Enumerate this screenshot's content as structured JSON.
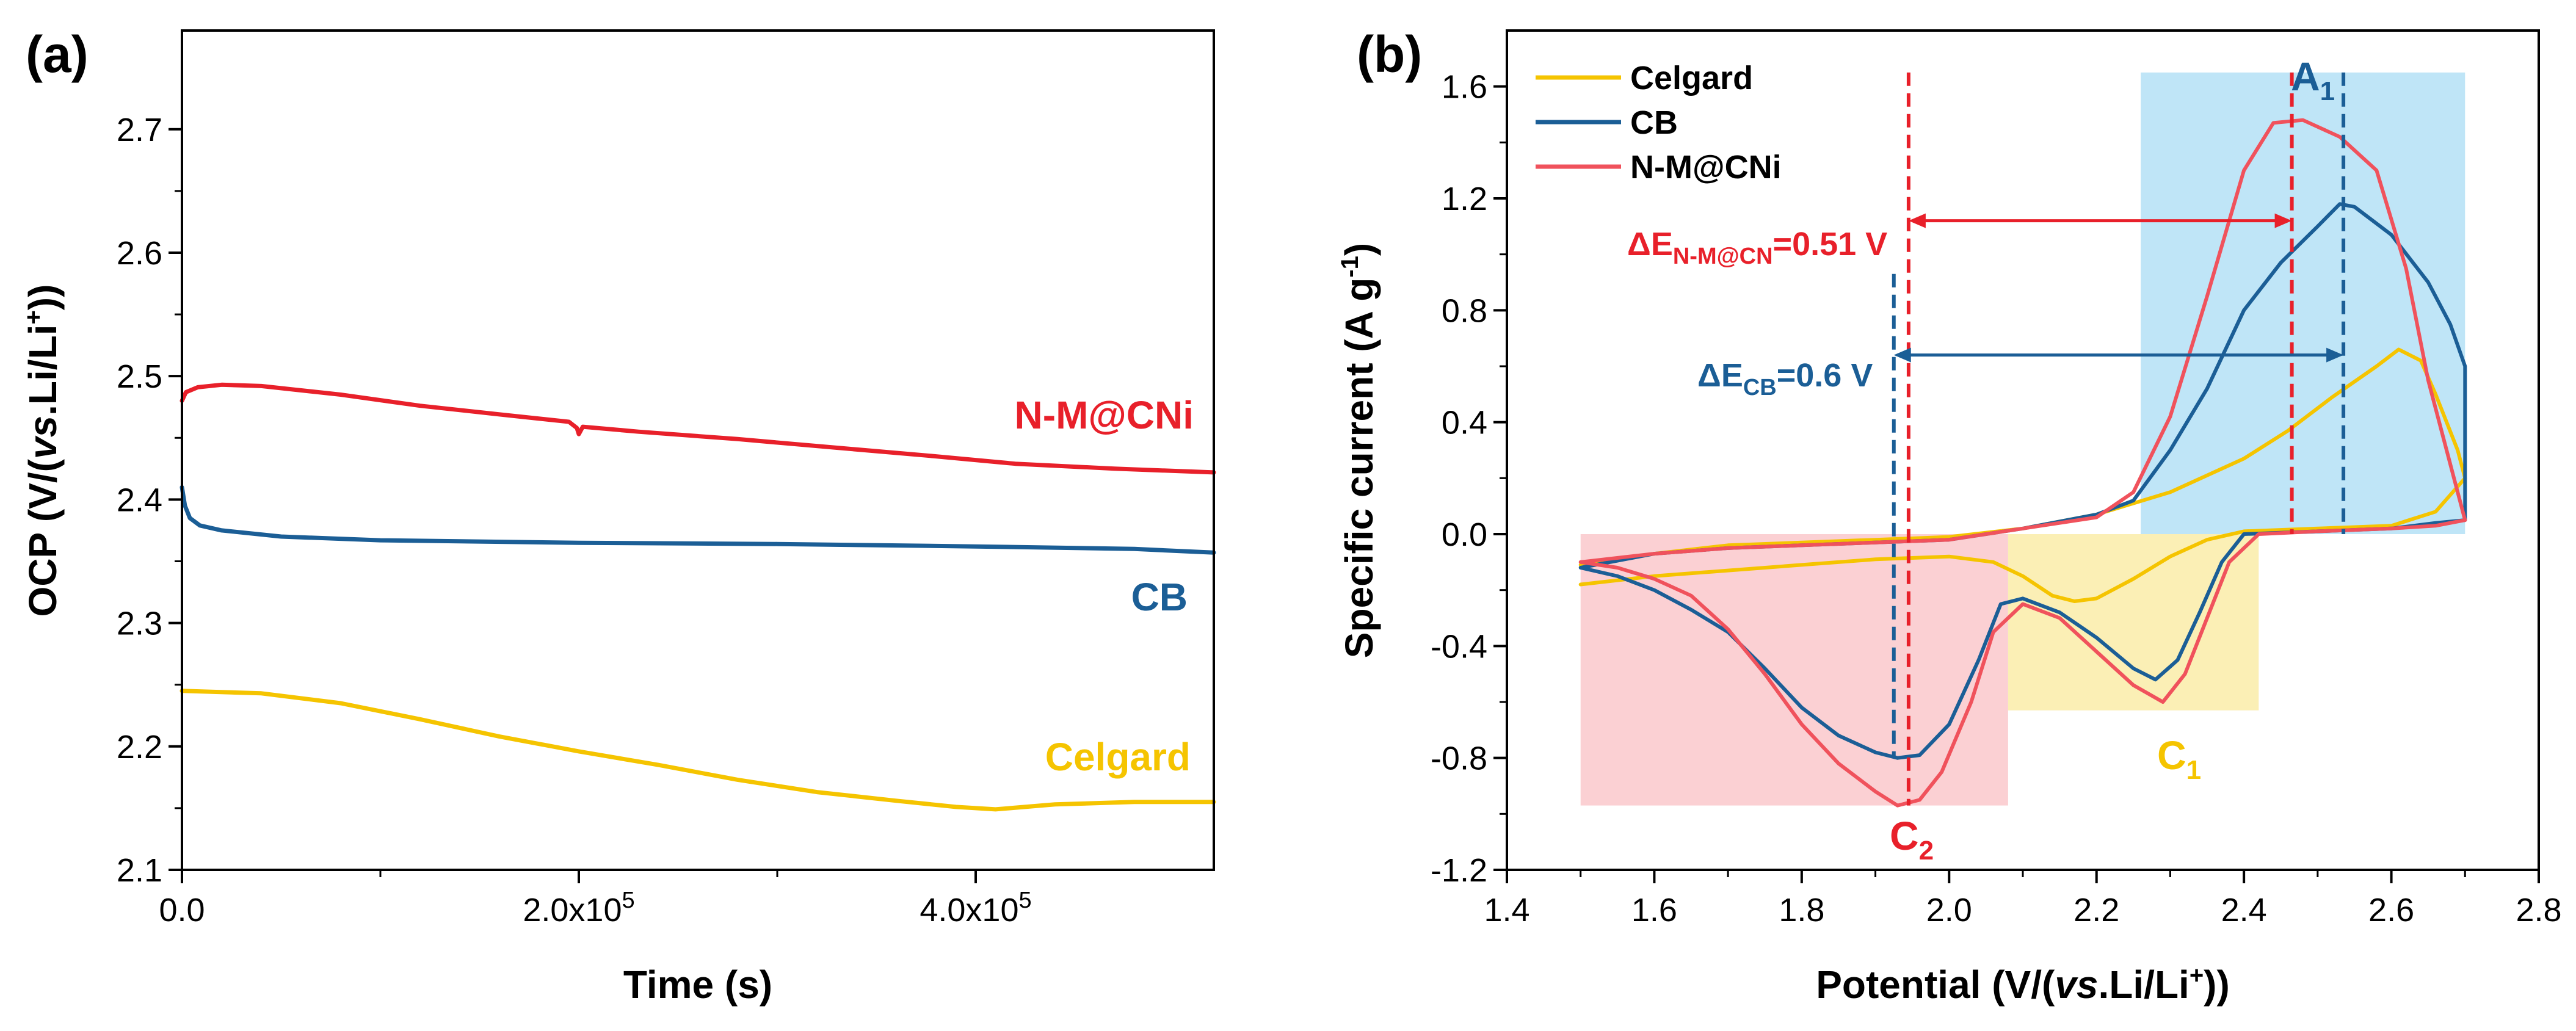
{
  "colors": {
    "celgard": "#F5C400",
    "cb": "#1B5E96",
    "nmcni": "#E8202A",
    "nmcni_cv": "#F0525C",
    "region_oxidation": "#BFE5F7",
    "region_c1": "#FBEFB5",
    "region_c2": "#FBD0D3"
  },
  "panel_a": {
    "label": "(a)",
    "series_labels": {
      "nmcni": "N-M@CNi",
      "cb": "CB",
      "celgard": "Celgard"
    }
  },
  "panel_b": {
    "label": "(b)",
    "legend": [
      "Celgard",
      "CB",
      "N-M@CNi"
    ],
    "peaks": {
      "A": {
        "letter": "A",
        "sub": "1"
      },
      "C1": {
        "letter": "C",
        "sub": "1"
      },
      "C2": {
        "letter": "C",
        "sub": "2"
      }
    },
    "annotation_nmcni": {
      "main": "ΔE",
      "sub": "N-M@CN",
      "value": "=0.51 V"
    },
    "annotation_cb": {
      "main": "ΔE",
      "sub": "CB",
      "value": "=0.6 V"
    }
  },
  "chart_data": [
    {
      "type": "line",
      "title": "(a)",
      "xlabel": {
        "main": "Time (s)"
      },
      "ylabel": {
        "pre": "OCP (V/(",
        "ital": "vs",
        "mid": ".Li/Li",
        "sup": "+",
        "post": "))"
      },
      "xlim": [
        0,
        520000
      ],
      "ylim": [
        2.1,
        2.78
      ],
      "xticks": [
        {
          "value": 0,
          "label": "0.0"
        },
        {
          "value": 200000,
          "label": "2.0x10",
          "sup": "5"
        },
        {
          "value": 400000,
          "label": "4.0x10",
          "sup": "5"
        }
      ],
      "yticks": [
        {
          "value": 2.1,
          "label": "2.1"
        },
        {
          "value": 2.2,
          "label": "2.2"
        },
        {
          "value": 2.3,
          "label": "2.3"
        },
        {
          "value": 2.4,
          "label": "2.4"
        },
        {
          "value": 2.5,
          "label": "2.5"
        },
        {
          "value": 2.6,
          "label": "2.6"
        },
        {
          "value": 2.7,
          "label": "2.7"
        }
      ],
      "series": [
        {
          "name": "N-M@CNi",
          "color": "#E8202A",
          "points": [
            [
              0,
              2.48
            ],
            [
              2000,
              2.487
            ],
            [
              8000,
              2.491
            ],
            [
              20000,
              2.493
            ],
            [
              40000,
              2.492
            ],
            [
              80000,
              2.485
            ],
            [
              120000,
              2.476
            ],
            [
              160000,
              2.469
            ],
            [
              195000,
              2.463
            ],
            [
              199000,
              2.458
            ],
            [
              200000,
              2.453
            ],
            [
              202000,
              2.459
            ],
            [
              230000,
              2.455
            ],
            [
              280000,
              2.449
            ],
            [
              330000,
              2.442
            ],
            [
              380000,
              2.435
            ],
            [
              420000,
              2.429
            ],
            [
              470000,
              2.425
            ],
            [
              520000,
              2.422
            ]
          ]
        },
        {
          "name": "CB",
          "color": "#1B5E96",
          "points": [
            [
              0,
              2.41
            ],
            [
              1500,
              2.395
            ],
            [
              4000,
              2.385
            ],
            [
              9000,
              2.379
            ],
            [
              20000,
              2.375
            ],
            [
              50000,
              2.37
            ],
            [
              100000,
              2.367
            ],
            [
              200000,
              2.365
            ],
            [
              300000,
              2.364
            ],
            [
              400000,
              2.362
            ],
            [
              480000,
              2.36
            ],
            [
              520000,
              2.357
            ]
          ]
        },
        {
          "name": "Celgard",
          "color": "#F5C400",
          "points": [
            [
              0,
              2.245
            ],
            [
              40000,
              2.243
            ],
            [
              80000,
              2.235
            ],
            [
              120000,
              2.222
            ],
            [
              160000,
              2.208
            ],
            [
              200000,
              2.196
            ],
            [
              240000,
              2.185
            ],
            [
              280000,
              2.173
            ],
            [
              320000,
              2.163
            ],
            [
              360000,
              2.156
            ],
            [
              390000,
              2.151
            ],
            [
              410000,
              2.149
            ],
            [
              440000,
              2.153
            ],
            [
              480000,
              2.155
            ],
            [
              520000,
              2.155
            ]
          ]
        }
      ]
    },
    {
      "type": "line",
      "title": "(b)",
      "xlabel": {
        "pre": "Potential (V/(",
        "ital": "vs",
        "mid": ".Li/Li",
        "sup": "+",
        "post": "))"
      },
      "ylabel": {
        "pre": "Specific current (A g",
        "sup": "-1",
        "post": ")"
      },
      "xlim": [
        1.4,
        2.8
      ],
      "ylim": [
        -1.2,
        1.8
      ],
      "xticks": [
        {
          "value": 1.4,
          "label": "1.4"
        },
        {
          "value": 1.6,
          "label": "1.6"
        },
        {
          "value": 1.8,
          "label": "1.8"
        },
        {
          "value": 2.0,
          "label": "2.0"
        },
        {
          "value": 2.2,
          "label": "2.2"
        },
        {
          "value": 2.4,
          "label": "2.4"
        },
        {
          "value": 2.6,
          "label": "2.6"
        },
        {
          "value": 2.8,
          "label": "2.8"
        }
      ],
      "yticks": [
        {
          "value": -1.2,
          "label": "-1.2"
        },
        {
          "value": -0.8,
          "label": "-0.8"
        },
        {
          "value": -0.4,
          "label": "-0.4"
        },
        {
          "value": 0.0,
          "label": "0.0"
        },
        {
          "value": 0.4,
          "label": "0.4"
        },
        {
          "value": 0.8,
          "label": "0.8"
        },
        {
          "value": 1.2,
          "label": "1.2"
        },
        {
          "value": 1.6,
          "label": "1.6"
        }
      ],
      "regions": [
        {
          "name": "oxidation-region",
          "x": [
            2.26,
            2.7
          ],
          "y": [
            0.0,
            1.65
          ],
          "color": "#BFE5F7"
        },
        {
          "name": "c1-region",
          "x": [
            2.08,
            2.42
          ],
          "y": [
            -0.63,
            0.0
          ],
          "color": "#FBEFB5"
        },
        {
          "name": "c2-region",
          "x": [
            1.5,
            2.08
          ],
          "y": [
            -0.97,
            0.0
          ],
          "color": "#FBD0D3"
        }
      ],
      "vlines": [
        {
          "name": "nmcni-reduction-peak",
          "x": 1.945,
          "y": [
            -0.97,
            1.65
          ],
          "color": "#E8202A"
        },
        {
          "name": "nmcni-oxidation-peak",
          "x": 2.465,
          "y": [
            0.0,
            1.65
          ],
          "color": "#E8202A"
        },
        {
          "name": "cb-reduction-peak",
          "x": 1.925,
          "y": [
            -0.8,
            0.93
          ],
          "color": "#1B5E96"
        },
        {
          "name": "cb-oxidation-peak",
          "x": 2.535,
          "y": [
            0.0,
            1.65
          ],
          "color": "#1B5E96"
        }
      ],
      "arrows": [
        {
          "name": "delta-e-nmcni-arrow",
          "x": [
            1.945,
            2.465
          ],
          "y": 1.12,
          "color": "#E8202A"
        },
        {
          "name": "delta-e-cb-arrow",
          "x": [
            1.925,
            2.535
          ],
          "y": 0.64,
          "color": "#1B5E96"
        }
      ],
      "series": [
        {
          "name": "Celgard",
          "color": "#F5C400",
          "points": [
            [
              1.5,
              -0.18
            ],
            [
              1.6,
              -0.15
            ],
            [
              1.7,
              -0.13
            ],
            [
              1.8,
              -0.11
            ],
            [
              1.9,
              -0.09
            ],
            [
              2.0,
              -0.08
            ],
            [
              2.06,
              -0.1
            ],
            [
              2.1,
              -0.15
            ],
            [
              2.14,
              -0.22
            ],
            [
              2.17,
              -0.24
            ],
            [
              2.2,
              -0.23
            ],
            [
              2.25,
              -0.16
            ],
            [
              2.3,
              -0.08
            ],
            [
              2.35,
              -0.02
            ],
            [
              2.4,
              0.01
            ],
            [
              2.5,
              0.02
            ],
            [
              2.6,
              0.03
            ],
            [
              2.66,
              0.08
            ],
            [
              2.7,
              0.2
            ],
            [
              2.69,
              0.3
            ],
            [
              2.66,
              0.5
            ],
            [
              2.64,
              0.62
            ],
            [
              2.61,
              0.66
            ],
            [
              2.58,
              0.6
            ],
            [
              2.52,
              0.49
            ],
            [
              2.46,
              0.37
            ],
            [
              2.4,
              0.27
            ],
            [
              2.3,
              0.15
            ],
            [
              2.2,
              0.07
            ],
            [
              2.1,
              0.02
            ],
            [
              2.0,
              -0.01
            ],
            [
              1.9,
              -0.02
            ],
            [
              1.8,
              -0.03
            ],
            [
              1.7,
              -0.04
            ],
            [
              1.6,
              -0.07
            ],
            [
              1.5,
              -0.11
            ]
          ]
        },
        {
          "name": "CB",
          "color": "#1B5E96",
          "points": [
            [
              1.5,
              -0.12
            ],
            [
              1.55,
              -0.15
            ],
            [
              1.6,
              -0.2
            ],
            [
              1.65,
              -0.27
            ],
            [
              1.7,
              -0.35
            ],
            [
              1.75,
              -0.48
            ],
            [
              1.8,
              -0.62
            ],
            [
              1.85,
              -0.72
            ],
            [
              1.9,
              -0.78
            ],
            [
              1.93,
              -0.8
            ],
            [
              1.96,
              -0.79
            ],
            [
              2.0,
              -0.68
            ],
            [
              2.04,
              -0.45
            ],
            [
              2.07,
              -0.25
            ],
            [
              2.1,
              -0.23
            ],
            [
              2.15,
              -0.28
            ],
            [
              2.2,
              -0.37
            ],
            [
              2.25,
              -0.48
            ],
            [
              2.28,
              -0.52
            ],
            [
              2.31,
              -0.45
            ],
            [
              2.34,
              -0.28
            ],
            [
              2.37,
              -0.1
            ],
            [
              2.4,
              0.0
            ],
            [
              2.5,
              0.01
            ],
            [
              2.6,
              0.02
            ],
            [
              2.66,
              0.04
            ],
            [
              2.7,
              0.05
            ],
            [
              2.7,
              0.6
            ],
            [
              2.68,
              0.75
            ],
            [
              2.65,
              0.9
            ],
            [
              2.6,
              1.07
            ],
            [
              2.55,
              1.17
            ],
            [
              2.53,
              1.18
            ],
            [
              2.5,
              1.1
            ],
            [
              2.45,
              0.97
            ],
            [
              2.4,
              0.8
            ],
            [
              2.35,
              0.52
            ],
            [
              2.3,
              0.3
            ],
            [
              2.25,
              0.12
            ],
            [
              2.2,
              0.07
            ],
            [
              2.1,
              0.02
            ],
            [
              2.0,
              -0.02
            ],
            [
              1.9,
              -0.03
            ],
            [
              1.8,
              -0.04
            ],
            [
              1.7,
              -0.05
            ],
            [
              1.6,
              -0.07
            ],
            [
              1.5,
              -0.12
            ]
          ]
        },
        {
          "name": "N-M@CNi",
          "color": "#F0525C",
          "points": [
            [
              1.5,
              -0.1
            ],
            [
              1.55,
              -0.12
            ],
            [
              1.6,
              -0.16
            ],
            [
              1.65,
              -0.22
            ],
            [
              1.7,
              -0.34
            ],
            [
              1.75,
              -0.5
            ],
            [
              1.8,
              -0.68
            ],
            [
              1.85,
              -0.82
            ],
            [
              1.9,
              -0.92
            ],
            [
              1.93,
              -0.97
            ],
            [
              1.96,
              -0.95
            ],
            [
              1.99,
              -0.85
            ],
            [
              2.03,
              -0.6
            ],
            [
              2.06,
              -0.35
            ],
            [
              2.1,
              -0.25
            ],
            [
              2.15,
              -0.3
            ],
            [
              2.2,
              -0.42
            ],
            [
              2.25,
              -0.54
            ],
            [
              2.29,
              -0.6
            ],
            [
              2.32,
              -0.5
            ],
            [
              2.35,
              -0.3
            ],
            [
              2.38,
              -0.1
            ],
            [
              2.42,
              0.0
            ],
            [
              2.5,
              0.01
            ],
            [
              2.6,
              0.02
            ],
            [
              2.66,
              0.03
            ],
            [
              2.7,
              0.05
            ],
            [
              2.68,
              0.25
            ],
            [
              2.65,
              0.55
            ],
            [
              2.62,
              0.95
            ],
            [
              2.58,
              1.3
            ],
            [
              2.53,
              1.42
            ],
            [
              2.48,
              1.48
            ],
            [
              2.44,
              1.47
            ],
            [
              2.4,
              1.3
            ],
            [
              2.35,
              0.85
            ],
            [
              2.3,
              0.42
            ],
            [
              2.25,
              0.15
            ],
            [
              2.2,
              0.06
            ],
            [
              2.1,
              0.02
            ],
            [
              2.0,
              -0.02
            ],
            [
              1.9,
              -0.03
            ],
            [
              1.8,
              -0.04
            ],
            [
              1.7,
              -0.05
            ],
            [
              1.6,
              -0.07
            ],
            [
              1.5,
              -0.1
            ]
          ]
        }
      ]
    }
  ]
}
